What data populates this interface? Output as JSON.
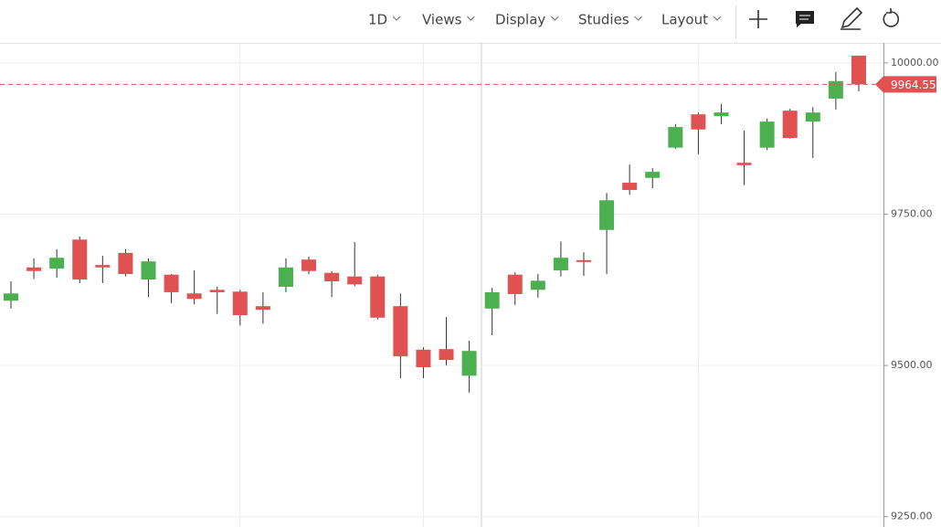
{
  "toolbar": {
    "menus": [
      "1D",
      "Views",
      "Display",
      "Studies",
      "Layout"
    ]
  },
  "chart_data": {
    "type": "candlestick",
    "open": [
      9607,
      9662,
      9660,
      9708,
      9666,
      9686,
      9642,
      9650,
      9619,
      9625,
      9622,
      9598,
      9630,
      9675,
      9653,
      9647,
      9647,
      9598,
      9526,
      9527,
      9483,
      9594,
      9650,
      9625,
      9657,
      9674,
      9724,
      9802,
      9810,
      9860,
      9915,
      9912,
      9835,
      9860,
      9921,
      9903,
      9941,
      10012
    ],
    "high": [
      9639,
      9677,
      9692,
      9713,
      9681,
      9692,
      9677,
      9651,
      9657,
      9630,
      9625,
      9621,
      9677,
      9680,
      9656,
      9704,
      9650,
      9619,
      9530,
      9580,
      9541,
      9628,
      9654,
      9651,
      9705,
      9687,
      9785,
      9832,
      9826,
      9899,
      9918,
      9932,
      9888,
      9908,
      9924,
      9927,
      9985,
      10012
    ],
    "low": [
      9594,
      9643,
      9645,
      9636,
      9636,
      9647,
      9613,
      9603,
      9601,
      9585,
      9566,
      9569,
      9621,
      9651,
      9613,
      9631,
      9576,
      9479,
      9479,
      9500,
      9455,
      9550,
      9600,
      9612,
      9647,
      9648,
      9651,
      9782,
      9793,
      9858,
      9849,
      9899,
      9798,
      9856,
      9875,
      9843,
      9923,
      9953
    ],
    "close": [
      9619,
      9656,
      9678,
      9642,
      9662,
      9651,
      9672,
      9621,
      9610,
      9621,
      9583,
      9592,
      9662,
      9656,
      9639,
      9634,
      9579,
      9515,
      9497,
      9509,
      9524,
      9621,
      9618,
      9640,
      9678,
      9671,
      9773,
      9790,
      9820,
      9894,
      9890,
      9918,
      9831,
      9903,
      9876,
      9918,
      9970,
      9964.55
    ],
    "up_color": "#4caf50",
    "down_color": "#e05252",
    "last_price": 9964.55,
    "ylim": [
      9233,
      10033
    ],
    "yticks": [
      {
        "value": 9250,
        "label": "9250.00"
      },
      {
        "value": 9500,
        "label": "9500.00"
      },
      {
        "value": 9750,
        "label": "9750.00"
      },
      {
        "value": 10000,
        "label": "10000.00"
      }
    ],
    "grid": true
  }
}
